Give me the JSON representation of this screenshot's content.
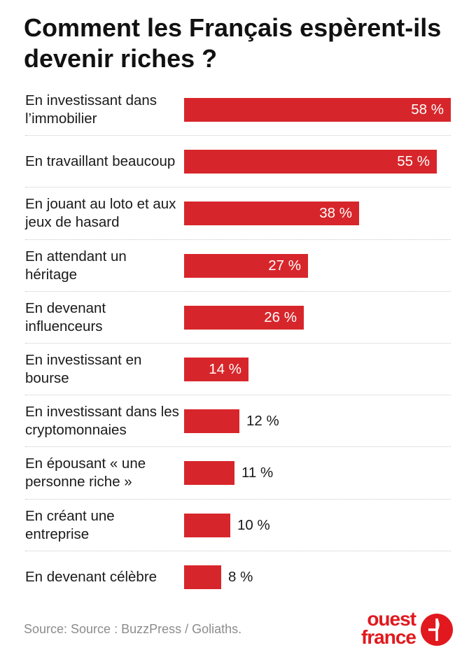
{
  "header": {
    "title": "Comment les Français espèrent-ils devenir riches ?"
  },
  "colors": {
    "bar": "#d7262b",
    "brand": "#e1191e"
  },
  "chart_data": {
    "type": "bar",
    "orientation": "horizontal",
    "title": "Comment les Français espèrent-ils devenir riches ?",
    "xlabel": "",
    "ylabel": "",
    "unit": "%",
    "xlim": [
      0,
      58
    ],
    "categories": [
      "En investissant dans l’immobilier",
      "En travaillant beaucoup",
      "En jouant au loto et aux jeux de hasard",
      "En attendant un héritage",
      "En devenant influenceurs",
      "En investissant en bourse",
      "En investissant dans les cryptomonnaies",
      "En épousant « une personne riche »",
      "En créant une entreprise",
      "En devenant célèbre"
    ],
    "values": [
      58,
      55,
      38,
      27,
      26,
      14,
      12,
      11,
      10,
      8
    ],
    "value_labels": [
      "58 %",
      "55 %",
      "38 %",
      "27 %",
      "26 %",
      "14 %",
      "12 %",
      "11 %",
      "10 %",
      "8 %"
    ]
  },
  "footer": {
    "source": "Source: Source : BuzzPress / Goliaths.",
    "logo_line1": "ouest",
    "logo_line2": "france"
  }
}
